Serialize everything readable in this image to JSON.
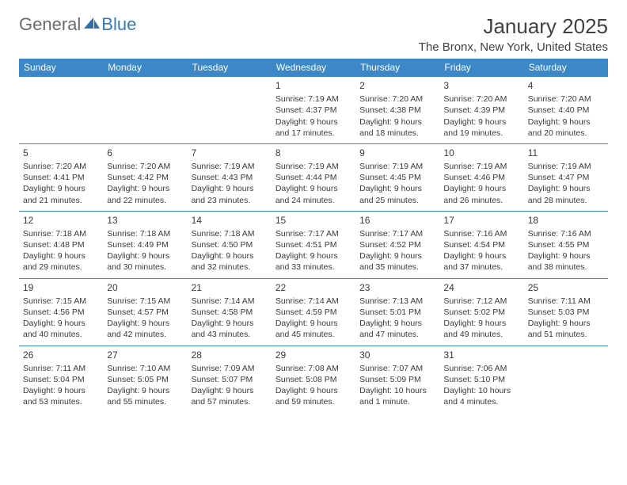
{
  "logo": {
    "word1": "General",
    "word2": "Blue"
  },
  "title": "January 2025",
  "location": "The Bronx, New York, United States",
  "header_bg": "#3b87c8",
  "header_fg": "#ffffff",
  "rule_color": "#3b87c8",
  "text_color": "#3a3a3a",
  "page_bg": "#ffffff",
  "day_names": [
    "Sunday",
    "Monday",
    "Tuesday",
    "Wednesday",
    "Thursday",
    "Friday",
    "Saturday"
  ],
  "weeks": [
    [
      null,
      null,
      null,
      {
        "n": "1",
        "sunrise": "7:19 AM",
        "sunset": "4:37 PM",
        "day_h": 9,
        "day_m": 17
      },
      {
        "n": "2",
        "sunrise": "7:20 AM",
        "sunset": "4:38 PM",
        "day_h": 9,
        "day_m": 18
      },
      {
        "n": "3",
        "sunrise": "7:20 AM",
        "sunset": "4:39 PM",
        "day_h": 9,
        "day_m": 19
      },
      {
        "n": "4",
        "sunrise": "7:20 AM",
        "sunset": "4:40 PM",
        "day_h": 9,
        "day_m": 20
      }
    ],
    [
      {
        "n": "5",
        "sunrise": "7:20 AM",
        "sunset": "4:41 PM",
        "day_h": 9,
        "day_m": 21
      },
      {
        "n": "6",
        "sunrise": "7:20 AM",
        "sunset": "4:42 PM",
        "day_h": 9,
        "day_m": 22
      },
      {
        "n": "7",
        "sunrise": "7:19 AM",
        "sunset": "4:43 PM",
        "day_h": 9,
        "day_m": 23
      },
      {
        "n": "8",
        "sunrise": "7:19 AM",
        "sunset": "4:44 PM",
        "day_h": 9,
        "day_m": 24
      },
      {
        "n": "9",
        "sunrise": "7:19 AM",
        "sunset": "4:45 PM",
        "day_h": 9,
        "day_m": 25
      },
      {
        "n": "10",
        "sunrise": "7:19 AM",
        "sunset": "4:46 PM",
        "day_h": 9,
        "day_m": 26
      },
      {
        "n": "11",
        "sunrise": "7:19 AM",
        "sunset": "4:47 PM",
        "day_h": 9,
        "day_m": 28
      }
    ],
    [
      {
        "n": "12",
        "sunrise": "7:18 AM",
        "sunset": "4:48 PM",
        "day_h": 9,
        "day_m": 29
      },
      {
        "n": "13",
        "sunrise": "7:18 AM",
        "sunset": "4:49 PM",
        "day_h": 9,
        "day_m": 30
      },
      {
        "n": "14",
        "sunrise": "7:18 AM",
        "sunset": "4:50 PM",
        "day_h": 9,
        "day_m": 32
      },
      {
        "n": "15",
        "sunrise": "7:17 AM",
        "sunset": "4:51 PM",
        "day_h": 9,
        "day_m": 33
      },
      {
        "n": "16",
        "sunrise": "7:17 AM",
        "sunset": "4:52 PM",
        "day_h": 9,
        "day_m": 35
      },
      {
        "n": "17",
        "sunrise": "7:16 AM",
        "sunset": "4:54 PM",
        "day_h": 9,
        "day_m": 37
      },
      {
        "n": "18",
        "sunrise": "7:16 AM",
        "sunset": "4:55 PM",
        "day_h": 9,
        "day_m": 38
      }
    ],
    [
      {
        "n": "19",
        "sunrise": "7:15 AM",
        "sunset": "4:56 PM",
        "day_h": 9,
        "day_m": 40
      },
      {
        "n": "20",
        "sunrise": "7:15 AM",
        "sunset": "4:57 PM",
        "day_h": 9,
        "day_m": 42
      },
      {
        "n": "21",
        "sunrise": "7:14 AM",
        "sunset": "4:58 PM",
        "day_h": 9,
        "day_m": 43
      },
      {
        "n": "22",
        "sunrise": "7:14 AM",
        "sunset": "4:59 PM",
        "day_h": 9,
        "day_m": 45
      },
      {
        "n": "23",
        "sunrise": "7:13 AM",
        "sunset": "5:01 PM",
        "day_h": 9,
        "day_m": 47
      },
      {
        "n": "24",
        "sunrise": "7:12 AM",
        "sunset": "5:02 PM",
        "day_h": 9,
        "day_m": 49
      },
      {
        "n": "25",
        "sunrise": "7:11 AM",
        "sunset": "5:03 PM",
        "day_h": 9,
        "day_m": 51
      }
    ],
    [
      {
        "n": "26",
        "sunrise": "7:11 AM",
        "sunset": "5:04 PM",
        "day_h": 9,
        "day_m": 53
      },
      {
        "n": "27",
        "sunrise": "7:10 AM",
        "sunset": "5:05 PM",
        "day_h": 9,
        "day_m": 55
      },
      {
        "n": "28",
        "sunrise": "7:09 AM",
        "sunset": "5:07 PM",
        "day_h": 9,
        "day_m": 57
      },
      {
        "n": "29",
        "sunrise": "7:08 AM",
        "sunset": "5:08 PM",
        "day_h": 9,
        "day_m": 59
      },
      {
        "n": "30",
        "sunrise": "7:07 AM",
        "sunset": "5:09 PM",
        "day_h": 10,
        "day_m": 1
      },
      {
        "n": "31",
        "sunrise": "7:06 AM",
        "sunset": "5:10 PM",
        "day_h": 10,
        "day_m": 4
      },
      null
    ]
  ],
  "labels": {
    "sunrise": "Sunrise:",
    "sunset": "Sunset:",
    "daylight": "Daylight:",
    "hours_word": "hours",
    "and_word": "and",
    "minutes_word_plural": "minutes.",
    "minutes_word_singular": "minute."
  }
}
